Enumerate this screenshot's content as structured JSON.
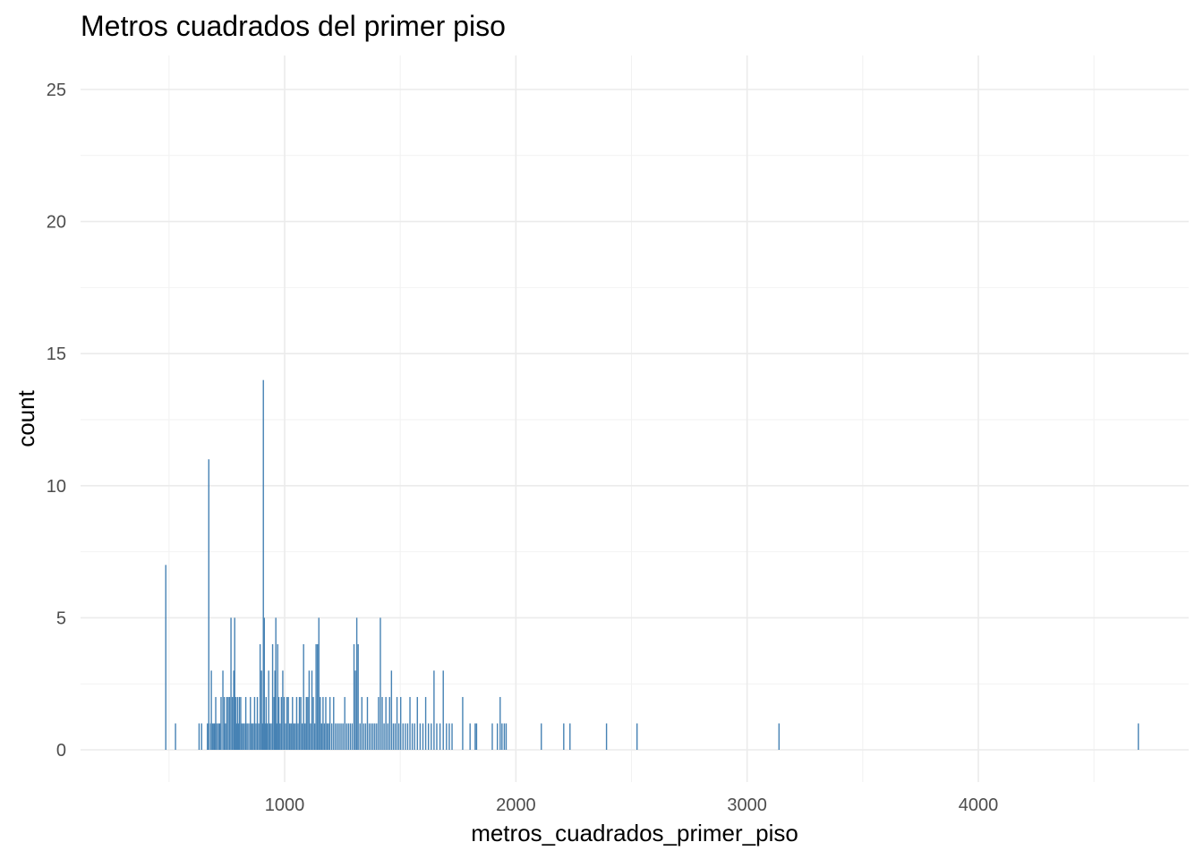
{
  "chart_data": {
    "type": "bar",
    "title": "Metros cuadrados del primer piso",
    "xlabel": "metros_cuadrados_primer_piso",
    "ylabel": "count",
    "xlim": [
      120,
      4900
    ],
    "ylim": [
      -1.3,
      25.4
    ],
    "x_ticks": [
      1000,
      2000,
      3000,
      4000
    ],
    "x_minor_ticks": [
      500,
      1500,
      2500,
      3500,
      4500
    ],
    "y_ticks": [
      0,
      5,
      10,
      15,
      20,
      25
    ],
    "y_minor_ticks": [
      2.5,
      7.5,
      12.5,
      17.5,
      22.5
    ],
    "grid": true,
    "bar_color": "#4682b4",
    "x": [
      486,
      528,
      630,
      641,
      666,
      672,
      680,
      683,
      689,
      694,
      698,
      702,
      708,
      715,
      720,
      725,
      733,
      739,
      744,
      750,
      756,
      762,
      768,
      774,
      780,
      784,
      788,
      792,
      796,
      800,
      804,
      810,
      814,
      820,
      826,
      832,
      838,
      845,
      852,
      858,
      864,
      870,
      876,
      882,
      888,
      894,
      900,
      904,
      908,
      912,
      916,
      920,
      925,
      931,
      936,
      942,
      948,
      954,
      958,
      962,
      966,
      970,
      975,
      980,
      986,
      992,
      998,
      1004,
      1010,
      1016,
      1022,
      1028,
      1034,
      1040,
      1046,
      1052,
      1058,
      1064,
      1070,
      1076,
      1082,
      1088,
      1094,
      1100,
      1106,
      1112,
      1118,
      1124,
      1130,
      1136,
      1142,
      1148,
      1154,
      1160,
      1166,
      1172,
      1178,
      1184,
      1190,
      1196,
      1204,
      1212,
      1220,
      1228,
      1236,
      1244,
      1252,
      1260,
      1268,
      1276,
      1284,
      1292,
      1300,
      1306,
      1312,
      1318,
      1326,
      1334,
      1342,
      1350,
      1358,
      1366,
      1374,
      1382,
      1390,
      1398,
      1406,
      1414,
      1422,
      1430,
      1438,
      1446,
      1454,
      1462,
      1470,
      1478,
      1486,
      1494,
      1502,
      1512,
      1522,
      1532,
      1542,
      1552,
      1562,
      1574,
      1586,
      1598,
      1610,
      1622,
      1634,
      1646,
      1658,
      1672,
      1686,
      1700,
      1712,
      1724,
      1770,
      1802,
      1824,
      1830,
      1898,
      1920,
      1932,
      1940,
      1950,
      1958,
      2110,
      2207,
      2234,
      2392,
      2524,
      3138,
      4692
    ],
    "values": [
      7,
      1,
      1,
      1,
      1,
      11,
      1,
      3,
      1,
      1,
      1,
      2,
      1,
      1,
      1,
      2,
      3,
      2,
      1,
      2,
      2,
      2,
      5,
      2,
      3,
      5,
      2,
      1,
      2,
      1,
      2,
      2,
      1,
      1,
      1,
      2,
      1,
      1,
      2,
      1,
      1,
      2,
      1,
      2,
      1,
      4,
      3,
      1,
      14,
      5,
      1,
      2,
      1,
      3,
      1,
      1,
      4,
      2,
      3,
      5,
      1,
      4,
      2,
      1,
      2,
      3,
      2,
      1,
      2,
      2,
      1,
      1,
      2,
      1,
      1,
      2,
      1,
      2,
      2,
      1,
      4,
      1,
      2,
      2,
      3,
      1,
      3,
      2,
      1,
      4,
      4,
      5,
      2,
      1,
      2,
      1,
      2,
      1,
      1,
      2,
      1,
      2,
      1,
      1,
      1,
      1,
      1,
      2,
      1,
      1,
      1,
      1,
      4,
      3,
      5,
      4,
      1,
      2,
      1,
      1,
      2,
      1,
      1,
      1,
      1,
      1,
      2,
      5,
      2,
      1,
      2,
      1,
      2,
      3,
      1,
      1,
      2,
      1,
      2,
      1,
      1,
      1,
      2,
      1,
      1,
      2,
      1,
      1,
      2,
      1,
      1,
      3,
      1,
      1,
      3,
      1,
      1,
      1,
      2,
      1,
      1,
      1,
      1,
      1,
      2,
      1,
      1,
      1,
      1,
      1,
      1,
      1,
      1,
      1,
      1
    ]
  }
}
